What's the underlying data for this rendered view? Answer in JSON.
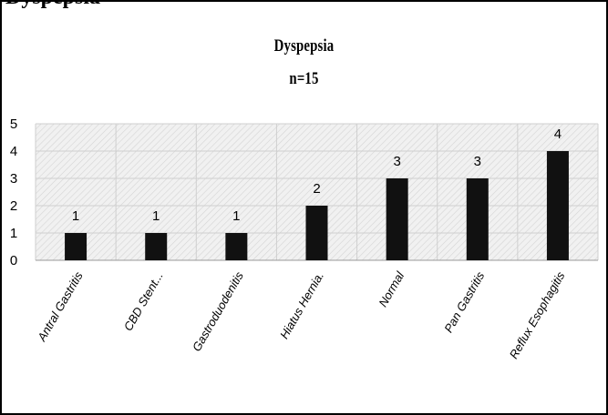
{
  "header": {
    "clipped_text": "Dyspepsia"
  },
  "chart_data": {
    "type": "bar",
    "title": [
      "Dyspepsia",
      "n=15"
    ],
    "categories": [
      "Antral Gastritis",
      "CBD Stent...",
      "Gastroduodenitis",
      "Hiatus Hernia.",
      "Normal",
      "Pan Gastritis",
      "Reflux Esophagitis"
    ],
    "values": [
      1,
      1,
      1,
      2,
      3,
      3,
      4
    ],
    "data_labels": [
      "1",
      "1",
      "1",
      "2",
      "3",
      "3",
      "4"
    ],
    "ylim": [
      0,
      5
    ],
    "yticks": [
      "0",
      "1",
      "2",
      "3",
      "4",
      "5"
    ],
    "grid": true,
    "legend": "none",
    "bar_color": "#111111",
    "plot_background": "#eeeeee"
  }
}
